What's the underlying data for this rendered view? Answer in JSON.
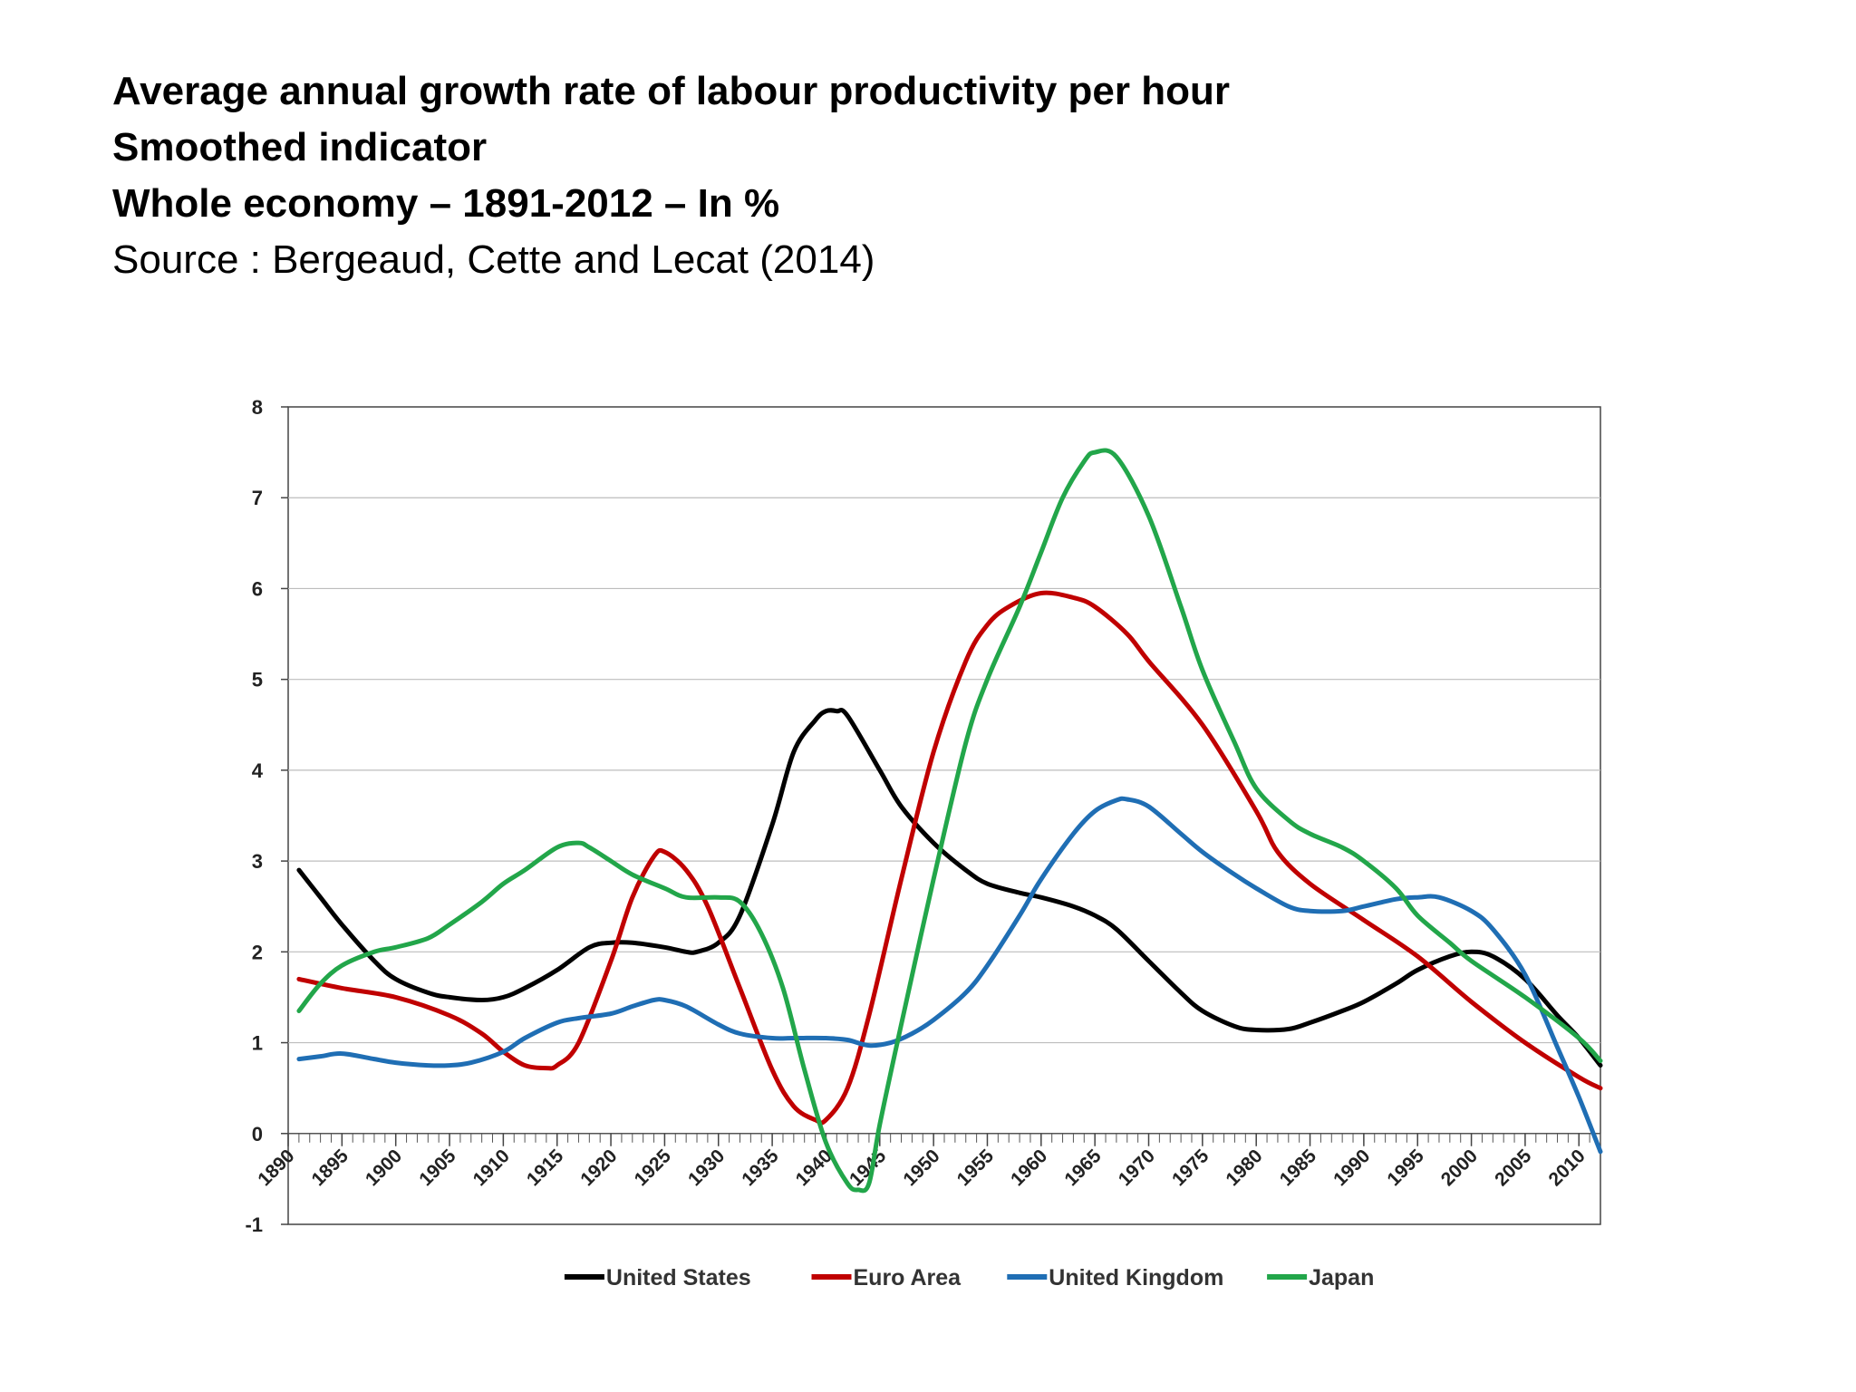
{
  "header": {
    "title_line1": "Average annual growth rate of labour productivity per hour",
    "title_line2": "Smoothed indicator",
    "title_line3": "Whole economy – 1891-2012 – In %",
    "source": "Source : Bergeaud, Cette and Lecat (2014)"
  },
  "chart_data": {
    "type": "line",
    "title": "Average annual growth rate of labour productivity per hour",
    "xlabel": "",
    "ylabel": "",
    "xlim": [
      1890,
      2012
    ],
    "ylim": [
      -1,
      8
    ],
    "y_ticks": [
      -1,
      0,
      1,
      2,
      3,
      4,
      5,
      6,
      7,
      8
    ],
    "x_ticks": [
      1890,
      1895,
      1900,
      1905,
      1910,
      1915,
      1920,
      1925,
      1930,
      1935,
      1940,
      1945,
      1950,
      1955,
      1960,
      1965,
      1970,
      1975,
      1980,
      1985,
      1990,
      1995,
      2000,
      2005,
      2010
    ],
    "grid": true,
    "legend_position": "bottom",
    "series": [
      {
        "name": "United States",
        "color": "#000000",
        "x": [
          1891,
          1893,
          1895,
          1898,
          1900,
          1903,
          1905,
          1908,
          1910,
          1912,
          1915,
          1918,
          1920,
          1922,
          1925,
          1927,
          1928,
          1930,
          1932,
          1935,
          1937,
          1939,
          1940,
          1941,
          1942,
          1945,
          1947,
          1950,
          1953,
          1955,
          1958,
          1960,
          1963,
          1965,
          1967,
          1970,
          1973,
          1975,
          1978,
          1980,
          1983,
          1985,
          1988,
          1990,
          1993,
          1995,
          1998,
          2000,
          2002,
          2005,
          2008,
          2010,
          2012
        ],
        "values": [
          2.9,
          2.6,
          2.3,
          1.9,
          1.7,
          1.55,
          1.5,
          1.47,
          1.5,
          1.6,
          1.8,
          2.05,
          2.1,
          2.1,
          2.05,
          2.0,
          2.0,
          2.1,
          2.4,
          3.4,
          4.2,
          4.55,
          4.65,
          4.65,
          4.6,
          4.0,
          3.6,
          3.2,
          2.9,
          2.75,
          2.65,
          2.6,
          2.5,
          2.4,
          2.25,
          1.9,
          1.55,
          1.35,
          1.18,
          1.14,
          1.15,
          1.22,
          1.35,
          1.45,
          1.65,
          1.8,
          1.95,
          2.0,
          1.95,
          1.7,
          1.3,
          1.05,
          0.75
        ]
      },
      {
        "name": "Euro Area",
        "color": "#c00000",
        "x": [
          1891,
          1895,
          1900,
          1905,
          1908,
          1910,
          1912,
          1914,
          1915,
          1917,
          1920,
          1922,
          1924,
          1925,
          1927,
          1929,
          1932,
          1935,
          1937,
          1939,
          1940,
          1942,
          1944,
          1947,
          1950,
          1953,
          1955,
          1957,
          1960,
          1963,
          1965,
          1968,
          1970,
          1975,
          1980,
          1982,
          1985,
          1990,
          1995,
          2000,
          2005,
          2010,
          2012
        ],
        "values": [
          1.7,
          1.6,
          1.5,
          1.3,
          1.1,
          0.9,
          0.75,
          0.72,
          0.75,
          1.0,
          1.9,
          2.6,
          3.05,
          3.1,
          2.9,
          2.5,
          1.6,
          0.7,
          0.3,
          0.15,
          0.15,
          0.5,
          1.3,
          2.8,
          4.2,
          5.2,
          5.6,
          5.8,
          5.95,
          5.9,
          5.8,
          5.5,
          5.2,
          4.5,
          3.55,
          3.1,
          2.75,
          2.35,
          1.95,
          1.45,
          1.0,
          0.62,
          0.5
        ]
      },
      {
        "name": "United Kingdom",
        "color": "#1f6eb4",
        "x": [
          1891,
          1893,
          1895,
          1898,
          1900,
          1903,
          1905,
          1907,
          1910,
          1912,
          1915,
          1917,
          1920,
          1922,
          1924,
          1925,
          1927,
          1930,
          1932,
          1935,
          1937,
          1940,
          1942,
          1944,
          1946,
          1948,
          1950,
          1953,
          1955,
          1958,
          1960,
          1963,
          1965,
          1967,
          1968,
          1970,
          1973,
          1975,
          1978,
          1980,
          1983,
          1985,
          1988,
          1990,
          1993,
          1995,
          1997,
          2000,
          2002,
          2005,
          2008,
          2010,
          2012
        ],
        "values": [
          0.82,
          0.85,
          0.88,
          0.82,
          0.78,
          0.75,
          0.75,
          0.78,
          0.9,
          1.05,
          1.22,
          1.27,
          1.32,
          1.4,
          1.47,
          1.47,
          1.4,
          1.2,
          1.1,
          1.05,
          1.05,
          1.05,
          1.03,
          0.97,
          1.0,
          1.1,
          1.25,
          1.55,
          1.85,
          2.4,
          2.8,
          3.3,
          3.55,
          3.67,
          3.68,
          3.6,
          3.3,
          3.1,
          2.85,
          2.7,
          2.5,
          2.45,
          2.45,
          2.5,
          2.58,
          2.6,
          2.6,
          2.45,
          2.25,
          1.75,
          0.95,
          0.4,
          -0.2
        ]
      },
      {
        "name": "Japan",
        "color": "#22a64a",
        "x": [
          1891,
          1893,
          1895,
          1898,
          1900,
          1903,
          1905,
          1908,
          1910,
          1912,
          1915,
          1917,
          1918,
          1920,
          1922,
          1925,
          1927,
          1930,
          1932,
          1934,
          1936,
          1938,
          1940,
          1942,
          1943,
          1944,
          1945,
          1947,
          1950,
          1953,
          1955,
          1958,
          1960,
          1962,
          1964,
          1965,
          1967,
          1970,
          1973,
          1975,
          1978,
          1980,
          1983,
          1985,
          1988,
          1990,
          1993,
          1995,
          1998,
          2000,
          2005,
          2010,
          2012
        ],
        "values": [
          1.35,
          1.65,
          1.85,
          2.0,
          2.05,
          2.15,
          2.3,
          2.55,
          2.75,
          2.9,
          3.15,
          3.2,
          3.15,
          3.0,
          2.85,
          2.7,
          2.6,
          2.6,
          2.55,
          2.2,
          1.6,
          0.7,
          -0.1,
          -0.55,
          -0.62,
          -0.55,
          0.1,
          1.2,
          2.8,
          4.3,
          5.0,
          5.8,
          6.4,
          7.0,
          7.4,
          7.5,
          7.45,
          6.8,
          5.8,
          5.1,
          4.3,
          3.8,
          3.45,
          3.3,
          3.15,
          3.0,
          2.7,
          2.4,
          2.1,
          1.9,
          1.5,
          1.05,
          0.8
        ]
      }
    ]
  }
}
